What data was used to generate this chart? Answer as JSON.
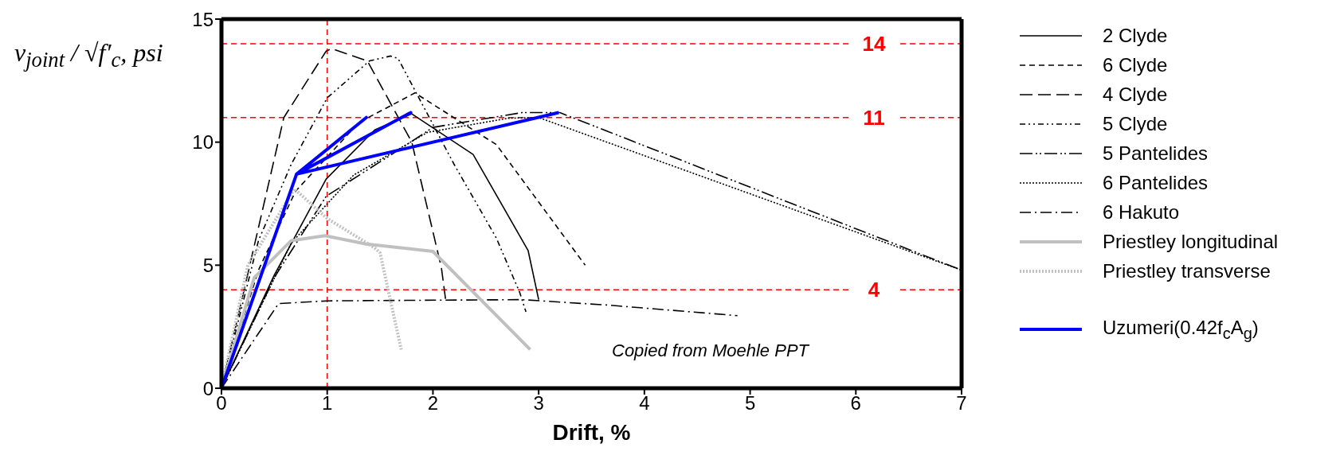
{
  "chart_data": {
    "type": "line",
    "xlabel": "Drift, %",
    "ylabel": "v$_{joint}$ / √f′$_{c}$, psi",
    "xlim": [
      0,
      7
    ],
    "xticks": [
      0,
      1,
      2,
      3,
      4,
      5,
      6,
      7
    ],
    "ylim": [
      0,
      15
    ],
    "yticks": [
      0,
      5,
      10,
      15
    ],
    "legend": "right",
    "marker": "none",
    "series": [
      {
        "name": "2 Clyde",
        "color": "#000000",
        "line_style": "solid",
        "x": [
          0,
          0.5,
          0.99,
          1.45,
          1.8,
          2.38,
          2.9,
          3.0
        ],
        "values": [
          0,
          4.6,
          8.5,
          10.5,
          11.15,
          9.5,
          5.6,
          3.6
        ]
      },
      {
        "name": "6 Clyde",
        "color": "#000000",
        "line_style": "dashed",
        "x": [
          0,
          0.35,
          0.7,
          1.3,
          1.83,
          2.6,
          3.44
        ],
        "values": [
          0,
          4.8,
          8.0,
          10.8,
          12.0,
          9.9,
          5.0
        ]
      },
      {
        "name": "4 Clyde",
        "color": "#000000",
        "line_style": "longdash",
        "x": [
          0,
          0.3,
          0.59,
          0.99,
          1.04,
          1.38,
          1.8,
          2.08,
          2.12
        ],
        "values": [
          0,
          5.6,
          11.0,
          13.7,
          13.8,
          13.3,
          10.0,
          4.9,
          3.6
        ]
      },
      {
        "name": "5 Clyde",
        "color": "#000000",
        "line_style": "dashdotdot",
        "x": [
          0,
          0.35,
          0.66,
          1.0,
          1.4,
          1.6,
          1.67,
          2.2,
          2.6,
          2.82,
          2.88
        ],
        "values": [
          0,
          6.0,
          9.1,
          11.8,
          13.3,
          13.5,
          13.4,
          9.1,
          6.1,
          3.9,
          3.1
        ]
      },
      {
        "name": "5 Pantelides",
        "color": "#000000",
        "line_style": "longdashdotdot",
        "x": [
          0,
          0.5,
          0.99,
          1.7,
          2.0,
          2.84,
          3.2,
          7.0
        ],
        "values": [
          0,
          4.5,
          7.8,
          9.75,
          10.6,
          11.2,
          11.2,
          4.8
        ]
      },
      {
        "name": "6 Pantelides",
        "color": "#000000",
        "line_style": "dotted",
        "x": [
          0,
          0.66,
          1.25,
          1.95,
          2.71,
          3.0,
          7.0
        ],
        "values": [
          0,
          5.9,
          8.66,
          10.4,
          10.97,
          11.0,
          4.8
        ]
      },
      {
        "name": "6 Hakuto",
        "color": "#000000",
        "line_style": "dashdot",
        "x": [
          0,
          0.54,
          1.0,
          2.84,
          3.65,
          4.88
        ],
        "values": [
          0,
          3.44,
          3.55,
          3.6,
          3.38,
          2.95
        ]
      },
      {
        "name": "Priestley longitudinal",
        "color": "#c0c0c0",
        "line_style": "solid",
        "x": [
          0,
          0.31,
          0.66,
          0.98,
          1.37,
          2.0,
          2.92
        ],
        "values": [
          0,
          4.5,
          6.0,
          6.2,
          5.86,
          5.56,
          1.57
        ]
      },
      {
        "name": "Priestley transverse",
        "color": "#c0c0c0",
        "line_style": "dotted",
        "x": [
          0,
          0.25,
          0.69,
          1.0,
          1.45,
          1.5,
          1.7
        ],
        "values": [
          0,
          5.0,
          8.1,
          6.9,
          5.7,
          5.5,
          1.57
        ]
      },
      {
        "name": "Uzumeri(0.42f$_{c}$A$_{g}$)",
        "color": "#0000ff",
        "line_style": "solid",
        "x": [
          0,
          0.71,
          1.37,
          0.71,
          1.79,
          0.71,
          3.19
        ],
        "values": [
          0,
          8.7,
          11.0,
          8.7,
          11.2,
          8.7,
          11.2
        ]
      }
    ],
    "ref_lines": [
      {
        "axis": "y",
        "value": 14,
        "label": "14",
        "color": "#ff0000",
        "line_style": "dashed"
      },
      {
        "axis": "y",
        "value": 11,
        "label": "11",
        "color": "#ff0000",
        "line_style": "dashed"
      },
      {
        "axis": "y",
        "value": 4,
        "label": "4",
        "color": "#ff0000",
        "line_style": "dashed"
      },
      {
        "axis": "x",
        "value": 1,
        "color": "#ff0000",
        "line_style": "dashed"
      }
    ],
    "annotations": [
      "Copied from Moehle PPT"
    ]
  }
}
